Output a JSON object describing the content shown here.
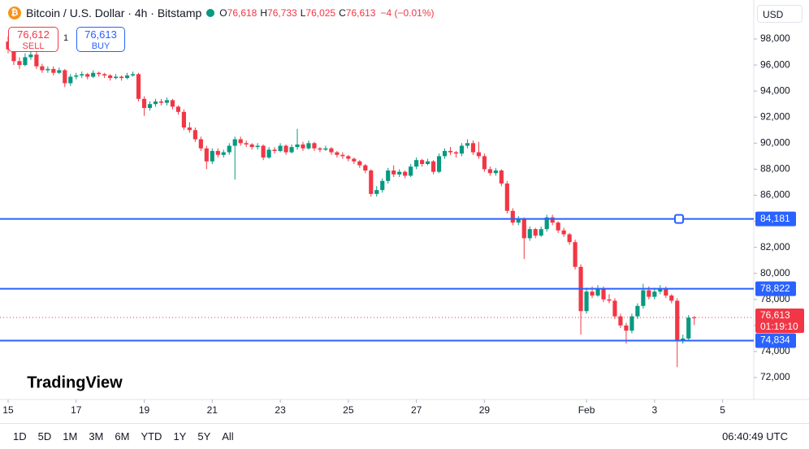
{
  "header": {
    "symbol": "Bitcoin / U.S. Dollar · 4h · Bitstamp",
    "ohlc": [
      {
        "key": "O",
        "value": "76,618"
      },
      {
        "key": "H",
        "value": "76,733"
      },
      {
        "key": "L",
        "value": "76,025"
      },
      {
        "key": "C",
        "value": "76,613"
      }
    ],
    "change": "−4 (−0.01%)"
  },
  "trade": {
    "sell_price": "76,612",
    "sell": "SELL",
    "spread": "1",
    "buy_price": "76,613",
    "buy": "BUY"
  },
  "currency": "USD",
  "logo": "TradingView",
  "timeframes": [
    "1D",
    "5D",
    "1M",
    "3M",
    "6M",
    "YTD",
    "1Y",
    "5Y",
    "All"
  ],
  "clock": "06:40:49 UTC",
  "chart_data": {
    "type": "candlestick",
    "up_color": "#089981",
    "down_color": "#f23645",
    "grid": false,
    "ylim": [
      70317,
      100993
    ],
    "yticks": [
      {
        "value": 72000,
        "label": "72,000"
      },
      {
        "value": 74000,
        "label": "74,000"
      },
      {
        "value": 76000,
        "label": "76,000"
      },
      {
        "value": 78000,
        "label": "78,000"
      },
      {
        "value": 80000,
        "label": "80,000"
      },
      {
        "value": 82000,
        "label": "82,000"
      },
      {
        "value": 84000,
        "label": "84,000"
      },
      {
        "value": 86000,
        "label": "86,000"
      },
      {
        "value": 88000,
        "label": "88,000"
      },
      {
        "value": 90000,
        "label": "90,000"
      },
      {
        "value": 92000,
        "label": "92,000"
      },
      {
        "value": 94000,
        "label": "94,000"
      },
      {
        "value": 96000,
        "label": "96,000"
      },
      {
        "value": 98000,
        "label": "98,000"
      }
    ],
    "xlim": [
      -1.43,
      131.5
    ],
    "xticks": [
      {
        "value": 0,
        "label": "15"
      },
      {
        "value": 12,
        "label": "17"
      },
      {
        "value": 24,
        "label": "19"
      },
      {
        "value": 36,
        "label": "21"
      },
      {
        "value": 48,
        "label": "23"
      },
      {
        "value": 60,
        "label": "25"
      },
      {
        "value": 72,
        "label": "27"
      },
      {
        "value": 84,
        "label": "29"
      },
      {
        "value": 102,
        "label": "Feb"
      },
      {
        "value": 114,
        "label": "3"
      },
      {
        "value": 126,
        "label": "5"
      }
    ],
    "hlines": [
      {
        "value": 84181,
        "label": "84,181"
      },
      {
        "value": 78822,
        "label": "78,822"
      },
      {
        "value": 74834,
        "label": "74,834"
      }
    ],
    "last_price": {
      "value": 76613,
      "label": "76,613",
      "countdown": "01:19:10"
    },
    "ohlc": [
      [
        97800,
        98200,
        96900,
        97200
      ],
      [
        97200,
        97500,
        96000,
        96300
      ],
      [
        96300,
        96600,
        95700,
        96000
      ],
      [
        96000,
        96900,
        95900,
        96600
      ],
      [
        96600,
        97100,
        96400,
        96800
      ],
      [
        96800,
        97000,
        95700,
        95900
      ],
      [
        95900,
        96100,
        95400,
        95600
      ],
      [
        95600,
        95900,
        95400,
        95700
      ],
      [
        95700,
        95900,
        95200,
        95400
      ],
      [
        95400,
        95800,
        95300,
        95600
      ],
      [
        95600,
        95700,
        94300,
        94600
      ],
      [
        94600,
        95300,
        94400,
        95100
      ],
      [
        95100,
        95400,
        94900,
        95200
      ],
      [
        95200,
        95500,
        95000,
        95300
      ],
      [
        95300,
        95400,
        94900,
        95100
      ],
      [
        95100,
        95600,
        95000,
        95400
      ],
      [
        95400,
        95500,
        95100,
        95300
      ],
      [
        95300,
        95400,
        95000,
        95200
      ],
      [
        95200,
        95300,
        94800,
        95000
      ],
      [
        95000,
        95300,
        94900,
        95100
      ],
      [
        95100,
        95200,
        94800,
        95000
      ],
      [
        95000,
        95400,
        94900,
        95200
      ],
      [
        95200,
        95500,
        95100,
        95300
      ],
      [
        95300,
        95400,
        93200,
        93400
      ],
      [
        93400,
        93600,
        92100,
        92700
      ],
      [
        92700,
        93200,
        92500,
        93000
      ],
      [
        93000,
        93400,
        92800,
        93200
      ],
      [
        93200,
        93400,
        92900,
        93100
      ],
      [
        93100,
        93500,
        92900,
        93300
      ],
      [
        93300,
        93400,
        92600,
        92800
      ],
      [
        92800,
        92900,
        92200,
        92400
      ],
      [
        92400,
        92600,
        91000,
        91200
      ],
      [
        91200,
        91600,
        90800,
        91000
      ],
      [
        91000,
        91200,
        90100,
        90300
      ],
      [
        90300,
        90500,
        89400,
        89600
      ],
      [
        89600,
        89800,
        88000,
        88600
      ],
      [
        88600,
        89600,
        88400,
        89400
      ],
      [
        89400,
        89600,
        88900,
        89100
      ],
      [
        89100,
        89500,
        88900,
        89300
      ],
      [
        89300,
        90000,
        89100,
        89800
      ],
      [
        89800,
        90500,
        87200,
        90300
      ],
      [
        90300,
        90500,
        89800,
        90000
      ],
      [
        90000,
        90200,
        89700,
        89900
      ],
      [
        89900,
        90000,
        89500,
        89700
      ],
      [
        89700,
        90000,
        89500,
        89800
      ],
      [
        89800,
        89900,
        88700,
        88900
      ],
      [
        88900,
        89700,
        88800,
        89500
      ],
      [
        89500,
        89700,
        89200,
        89400
      ],
      [
        89400,
        90000,
        89300,
        89800
      ],
      [
        89800,
        89900,
        89100,
        89300
      ],
      [
        89300,
        89900,
        89200,
        89700
      ],
      [
        89700,
        91100,
        89500,
        89900
      ],
      [
        89900,
        90100,
        89400,
        89600
      ],
      [
        89600,
        90200,
        89500,
        90000
      ],
      [
        90000,
        90100,
        89400,
        89600
      ],
      [
        89600,
        89700,
        89300,
        89500
      ],
      [
        89500,
        89800,
        89400,
        89600
      ],
      [
        89600,
        89700,
        89100,
        89300
      ],
      [
        89300,
        89400,
        88900,
        89100
      ],
      [
        89100,
        89300,
        88800,
        89000
      ],
      [
        89000,
        89100,
        88600,
        88800
      ],
      [
        88800,
        88900,
        88400,
        88600
      ],
      [
        88600,
        88700,
        88100,
        88300
      ],
      [
        88300,
        88400,
        87700,
        87900
      ],
      [
        87900,
        88000,
        85900,
        86100
      ],
      [
        86100,
        86700,
        85900,
        86400
      ],
      [
        86400,
        87300,
        86200,
        87100
      ],
      [
        87100,
        88100,
        86900,
        87900
      ],
      [
        87900,
        88300,
        87400,
        87600
      ],
      [
        87600,
        88000,
        87400,
        87800
      ],
      [
        87800,
        87900,
        87300,
        87500
      ],
      [
        87500,
        88400,
        87400,
        88200
      ],
      [
        88200,
        88900,
        88000,
        88700
      ],
      [
        88700,
        88800,
        88200,
        88400
      ],
      [
        88400,
        88800,
        88300,
        88600
      ],
      [
        88600,
        88700,
        87600,
        87800
      ],
      [
        87800,
        89200,
        87700,
        89000
      ],
      [
        89000,
        89600,
        88800,
        89400
      ],
      [
        89400,
        89700,
        89100,
        89300
      ],
      [
        89300,
        89400,
        88900,
        89200
      ],
      [
        89200,
        90000,
        89000,
        89800
      ],
      [
        89800,
        90300,
        89600,
        90000
      ],
      [
        90000,
        90200,
        89100,
        89300
      ],
      [
        89300,
        90100,
        88800,
        89000
      ],
      [
        89000,
        89200,
        87800,
        88000
      ],
      [
        88000,
        88200,
        87500,
        87700
      ],
      [
        87700,
        88100,
        87500,
        87900
      ],
      [
        87900,
        88000,
        86700,
        86900
      ],
      [
        86900,
        87100,
        84600,
        84800
      ],
      [
        84800,
        85000,
        83700,
        83900
      ],
      [
        83900,
        84400,
        83700,
        84200
      ],
      [
        84200,
        84300,
        81100,
        82700
      ],
      [
        82700,
        83600,
        82500,
        83400
      ],
      [
        83400,
        83500,
        82700,
        82900
      ],
      [
        82900,
        83600,
        82800,
        83400
      ],
      [
        83400,
        84500,
        83200,
        84300
      ],
      [
        84300,
        84500,
        83700,
        83900
      ],
      [
        83900,
        84000,
        83100,
        83300
      ],
      [
        83300,
        83500,
        82800,
        83000
      ],
      [
        83000,
        83100,
        82200,
        82400
      ],
      [
        82400,
        82600,
        80300,
        80500
      ],
      [
        80500,
        80700,
        75300,
        77100
      ],
      [
        77100,
        78900,
        76900,
        78600
      ],
      [
        78600,
        79000,
        78100,
        78300
      ],
      [
        78300,
        79100,
        78200,
        78800
      ],
      [
        78800,
        79000,
        77800,
        78000
      ],
      [
        78000,
        78400,
        77700,
        77900
      ],
      [
        77900,
        78100,
        76500,
        76700
      ],
      [
        76700,
        76900,
        75800,
        76000
      ],
      [
        76000,
        76200,
        74600,
        75600
      ],
      [
        75600,
        76900,
        75400,
        76700
      ],
      [
        76700,
        77700,
        76500,
        77500
      ],
      [
        77500,
        79200,
        77300,
        78700
      ],
      [
        78700,
        79000,
        78000,
        78200
      ],
      [
        78200,
        78900,
        78000,
        78600
      ],
      [
        78600,
        79100,
        78400,
        78800
      ],
      [
        78800,
        79000,
        78100,
        78300
      ],
      [
        78300,
        78400,
        77700,
        77900
      ],
      [
        77900,
        78100,
        72800,
        74800
      ],
      [
        74800,
        75300,
        74600,
        75000
      ],
      [
        75000,
        76800,
        74900,
        76600
      ],
      [
        76618,
        76733,
        76025,
        76613
      ]
    ]
  }
}
